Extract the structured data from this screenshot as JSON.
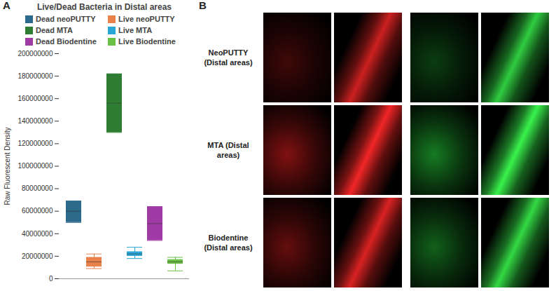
{
  "chart_data": {
    "type": "box",
    "panel": "A",
    "title": "Live/Dead Bacteria in Distal areas",
    "y_label": "Raw Fluorescent Density",
    "ylim": [
      0,
      200000000
    ],
    "yticks": [
      0,
      20000000,
      40000000,
      60000000,
      80000000,
      100000000,
      120000000,
      140000000,
      160000000,
      180000000,
      200000000
    ],
    "legend": "top",
    "tick_labels": "y",
    "series": [
      {
        "name": "Dead neoPUTTY",
        "color": "#2c6a8c",
        "min": 50000000,
        "q1": 50000000,
        "median": 60000000,
        "q3": 69000000,
        "max": 69000000
      },
      {
        "name": "Live neoPUTTY",
        "color": "#e8824a",
        "min": 9000000,
        "q1": 10500000,
        "median": 15000000,
        "q3": 19000000,
        "max": 22000000
      },
      {
        "name": "Dead MTA",
        "color": "#2e7d32",
        "min": 130000000,
        "q1": 130000000,
        "median": 156000000,
        "q3": 182000000,
        "max": 182000000
      },
      {
        "name": "Live MTA",
        "color": "#2aa6d6",
        "min": 18000000,
        "q1": 20000000,
        "median": 22000000,
        "q3": 24000000,
        "max": 28000000
      },
      {
        "name": "Dead Biodentine",
        "color": "#a03aa5",
        "min": 34000000,
        "q1": 34000000,
        "median": 49000000,
        "q3": 64000000,
        "max": 64000000
      },
      {
        "name": "Live Biodentine",
        "color": "#6abf45",
        "min": 7000000,
        "q1": 13000000,
        "median": 15000000,
        "q3": 17000000,
        "max": 19000000
      }
    ]
  },
  "image_panel": {
    "panel": "B",
    "rows": [
      "NeoPUTTY (Distal areas)",
      "MTA (Distal areas)",
      "Biodentine (Distal areas)"
    ]
  }
}
